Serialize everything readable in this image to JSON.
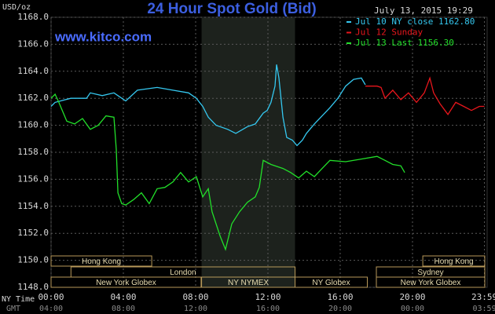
{
  "chart_data": {
    "type": "line",
    "title": "24 Hour Spot Gold (Bid)",
    "subtitle": "July 13, 2015 19:29",
    "source": "www.kitco.com",
    "y_label": "USD/oz",
    "x_label": "NY Time",
    "x2_label": "GMT",
    "xlim": [
      0,
      24
    ],
    "ylim": [
      1148,
      1168
    ],
    "xticks": [
      {
        "value": 0,
        "label": "00:00"
      },
      {
        "value": 4,
        "label": "04:00"
      },
      {
        "value": 8,
        "label": "08:00"
      },
      {
        "value": 12,
        "label": "12:00"
      },
      {
        "value": 16,
        "label": "16:00"
      },
      {
        "value": 20,
        "label": "20:00"
      },
      {
        "value": 23.98,
        "label": "23:59"
      }
    ],
    "x2ticks": [
      "04:00",
      "08:00",
      "12:00",
      "16:00",
      "20:00",
      "00:00",
      "03:59"
    ],
    "yticks": [
      {
        "value": 1148,
        "label": "1148.0"
      },
      {
        "value": 1150,
        "label": "1150.0"
      },
      {
        "value": 1152,
        "label": "1152.0"
      },
      {
        "value": 1154,
        "label": "1154.0"
      },
      {
        "value": 1156,
        "label": "1156.0"
      },
      {
        "value": 1158,
        "label": "1158.0"
      },
      {
        "value": 1160,
        "label": "1160.0"
      },
      {
        "value": 1162,
        "label": "1162.0"
      },
      {
        "value": 1164,
        "label": "1164.0"
      },
      {
        "value": 1166,
        "label": "1166.0"
      },
      {
        "value": 1168,
        "label": "1168.0"
      }
    ],
    "grid": true,
    "highlight": [
      8.33,
      13.5
    ],
    "series": [
      {
        "name": "Jul 10 NY close 1162.80",
        "color": "#35c8f0",
        "x": [
          0,
          0.22,
          1.09,
          1.96,
          2.17,
          2.83,
          3.48,
          4.13,
          4.78,
          5.87,
          6.74,
          7.61,
          8.04,
          8.39,
          8.7,
          9.13,
          9.78,
          10.22,
          10.87,
          11.3,
          11.74,
          11.96,
          12.17,
          12.39,
          12.48,
          12.61,
          12.83,
          13.04,
          13.35,
          13.61,
          13.91,
          14.13,
          14.57,
          15,
          15.43,
          15.87,
          16.3,
          16.74,
          17.17,
          17.39
        ],
        "values": [
          1161.4,
          1161.7,
          1162.0,
          1162.0,
          1162.4,
          1162.2,
          1162.4,
          1161.8,
          1162.6,
          1162.8,
          1162.6,
          1162.4,
          1162.0,
          1161.4,
          1160.6,
          1160.0,
          1159.7,
          1159.4,
          1159.9,
          1160.1,
          1160.9,
          1161.1,
          1161.7,
          1162.9,
          1164.5,
          1163.5,
          1160.6,
          1159.1,
          1158.9,
          1158.5,
          1158.9,
          1159.4,
          1160.1,
          1160.7,
          1161.3,
          1162.0,
          1162.9,
          1163.4,
          1163.5,
          1163.0
        ]
      },
      {
        "name": "Jul 12 Sunday",
        "color": "#e8161c",
        "x": [
          17.39,
          18.04,
          18.26,
          18.48,
          18.91,
          19.35,
          19.78,
          20.22,
          20.65,
          20.96,
          21.17,
          21.52,
          21.96,
          22.39,
          22.83,
          23.26,
          23.7,
          23.98
        ],
        "values": [
          1162.9,
          1162.9,
          1162.8,
          1162.0,
          1162.6,
          1161.9,
          1162.4,
          1161.7,
          1162.4,
          1163.5,
          1162.4,
          1161.6,
          1160.8,
          1161.7,
          1161.4,
          1161.1,
          1161.4,
          1161.4
        ]
      },
      {
        "name": "Jul 13 Last 1156.30",
        "color": "#22e02a",
        "x": [
          0,
          0.22,
          0.43,
          0.87,
          1.3,
          1.74,
          2.17,
          2.61,
          3.04,
          3.48,
          3.61,
          3.7,
          3.91,
          4.13,
          4.57,
          5.0,
          5.43,
          5.87,
          6.3,
          6.74,
          7.17,
          7.61,
          8.04,
          8.39,
          8.7,
          8.91,
          9.35,
          9.65,
          10.0,
          10.43,
          10.87,
          11.3,
          11.52,
          11.74,
          12.17,
          12.83,
          13.26,
          13.7,
          14.13,
          14.57,
          15,
          15.43,
          16.3,
          17.17,
          18.04,
          18.48,
          18.91,
          19.35,
          19.57
        ],
        "values": [
          1162.0,
          1162.3,
          1161.7,
          1160.3,
          1160.1,
          1160.5,
          1159.7,
          1160.0,
          1160.7,
          1160.6,
          1158.2,
          1155.0,
          1154.2,
          1154.1,
          1154.5,
          1155.0,
          1154.2,
          1155.3,
          1155.4,
          1155.8,
          1156.5,
          1155.8,
          1156.2,
          1154.7,
          1155.3,
          1153.6,
          1151.8,
          1150.8,
          1152.7,
          1153.6,
          1154.3,
          1154.7,
          1155.4,
          1157.4,
          1157.1,
          1156.8,
          1156.5,
          1156.1,
          1156.6,
          1156.2,
          1156.8,
          1157.4,
          1157.3,
          1157.5,
          1157.7,
          1157.4,
          1157.1,
          1157.0,
          1156.5
        ]
      }
    ],
    "sessions": [
      [
        {
          "name": "Hong Kong",
          "start": 0,
          "end": 5.57
        },
        {
          "name": "Hong Kong",
          "start": 20.57,
          "end": 24
        }
      ],
      [
        {
          "name": "London",
          "start": 1.1,
          "end": 13.5
        },
        {
          "name": "Sydney",
          "start": 18.0,
          "end": 24
        }
      ],
      [
        {
          "name": "New York Globex",
          "start": 0,
          "end": 8.3
        },
        {
          "name": "NY NYMEX",
          "start": 8.33,
          "end": 13.5
        },
        {
          "name": "NY Globex",
          "start": 13.5,
          "end": 17.5
        },
        {
          "name": "New York Globex",
          "start": 18.0,
          "end": 24
        }
      ]
    ]
  }
}
